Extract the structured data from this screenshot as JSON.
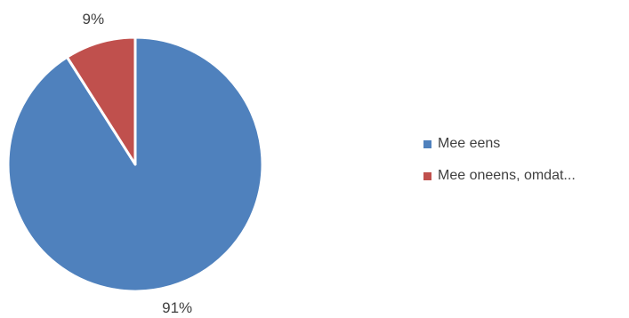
{
  "chart_data": {
    "type": "pie",
    "slices": [
      {
        "name": "Mee eens",
        "value": 91,
        "label": "91%",
        "color": "#4F81BD"
      },
      {
        "name": "Mee oneens, omdat...",
        "value": 9,
        "label": "9%",
        "color": "#C0504D"
      }
    ],
    "legend_position": "right"
  }
}
